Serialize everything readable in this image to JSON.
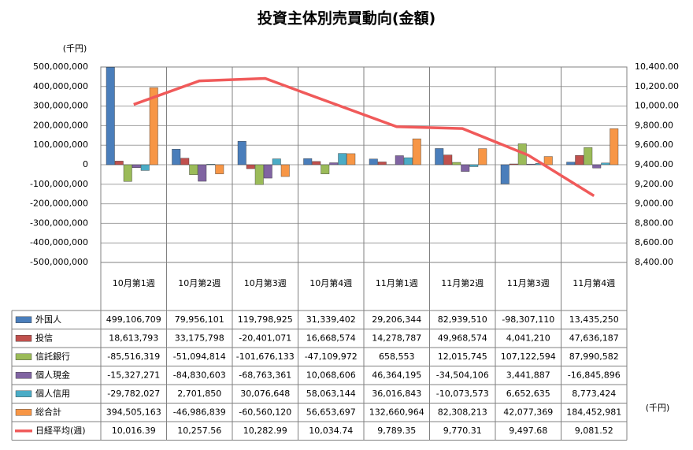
{
  "chart_data": {
    "type": "bar",
    "title": "投資主体別売買動向(金額)",
    "y_unit": "(千円)",
    "table_unit": "(千円)",
    "categories": [
      "10月第1週",
      "10月第2週",
      "10月第3週",
      "10月第4週",
      "11月第1週",
      "11月第2週",
      "11月第3週",
      "11月第4週"
    ],
    "ylim": [
      -500000000,
      500000000
    ],
    "yticks": [
      {
        "value": 500000000,
        "label": "500,000,000"
      },
      {
        "value": 400000000,
        "label": "400,000,000"
      },
      {
        "value": 300000000,
        "label": "300,000,000"
      },
      {
        "value": 200000000,
        "label": "200,000,000"
      },
      {
        "value": 100000000,
        "label": "100,000,000"
      },
      0,
      {
        "value": -100000000,
        "label": "-100,000,000"
      },
      {
        "value": -200000000,
        "label": "-200,000,000"
      },
      {
        "value": -300000000,
        "label": "-300,000,000"
      },
      {
        "value": -400000000,
        "label": "-400,000,000"
      },
      {
        "value": -500000000,
        "label": "-500,000,000"
      }
    ],
    "y2lim": [
      8400,
      10400
    ],
    "y2ticks": [
      {
        "value": 10400,
        "label": "10,400.00"
      },
      {
        "value": 10200,
        "label": "10,200.00"
      },
      {
        "value": 10000,
        "label": "10,000.00"
      },
      {
        "value": 9800,
        "label": "9,800.00"
      },
      {
        "value": 9600,
        "label": "9,600.00"
      },
      {
        "value": 9400,
        "label": "9,400.00"
      },
      {
        "value": 9200,
        "label": "9,200.00"
      },
      {
        "value": 9000,
        "label": "9,000.00"
      },
      {
        "value": 8800,
        "label": "8,800.00"
      },
      {
        "value": 8600,
        "label": "8,600.00"
      },
      {
        "value": 8400,
        "label": "8,400.00"
      }
    ],
    "grid": true,
    "negative_tick_color": "#e00000",
    "series": [
      {
        "name": "外国人",
        "color": "#4a7ebb",
        "values": [
          499106709,
          79956101,
          119798925,
          31339402,
          29206344,
          82939510,
          -98307110,
          13435250
        ],
        "value_labels": [
          "499,106,709",
          "79,956,101",
          "119,798,925",
          "31,339,402",
          "29,206,344",
          "82,939,510",
          "-98,307,110",
          "13,435,250"
        ]
      },
      {
        "name": "投信",
        "color": "#c0504d",
        "values": [
          18613793,
          33175798,
          -20401071,
          16668574,
          14278787,
          49968574,
          4041210,
          47636187
        ],
        "value_labels": [
          "18,613,793",
          "33,175,798",
          "-20,401,071",
          "16,668,574",
          "14,278,787",
          "49,968,574",
          "4,041,210",
          "47,636,187"
        ]
      },
      {
        "name": "信託銀行",
        "color": "#9bbb59",
        "values": [
          -85516319,
          -51094814,
          -101676133,
          -47109972,
          658553,
          12015745,
          107122594,
          87990582
        ],
        "value_labels": [
          "-85,516,319",
          "-51,094,814",
          "-101,676,133",
          "-47,109,972",
          "658,553",
          "12,015,745",
          "107,122,594",
          "87,990,582"
        ]
      },
      {
        "name": "個人現金",
        "color": "#8064a2",
        "values": [
          -15327271,
          -84830603,
          -68763361,
          10068606,
          46364195,
          -34504106,
          3441887,
          -16845896
        ],
        "value_labels": [
          "-15,327,271",
          "-84,830,603",
          "-68,763,361",
          "10,068,606",
          "46,364,195",
          "-34,504,106",
          "3,441,887",
          "-16,845,896"
        ]
      },
      {
        "name": "個人信用",
        "color": "#4bacc6",
        "values": [
          -29782027,
          2701850,
          30076648,
          58063144,
          36016843,
          -10073573,
          6652635,
          8773424
        ],
        "value_labels": [
          "-29,782,027",
          "2,701,850",
          "30,076,648",
          "58,063,144",
          "36,016,843",
          "-10,073,573",
          "6,652,635",
          "8,773,424"
        ]
      },
      {
        "name": "総合計",
        "color": "#f79646",
        "values": [
          394505163,
          -46986839,
          -60560120,
          56653697,
          132660964,
          82308213,
          42077369,
          184452981
        ],
        "value_labels": [
          "394,505,163",
          "-46,986,839",
          "-60,560,120",
          "56,653,697",
          "132,660,964",
          "82,308,213",
          "42,077,369",
          "184,452,981"
        ]
      },
      {
        "name": "日経平均(週)",
        "color": "#f05a5a",
        "type": "line",
        "axis": "y2",
        "values": [
          10016.39,
          10257.56,
          10282.99,
          10034.74,
          9789.35,
          9770.31,
          9497.68,
          9081.52
        ],
        "value_labels": [
          "10,016.39",
          "10,257.56",
          "10,282.99",
          "10,034.74",
          "9,789.35",
          "9,770.31",
          "9,497.68",
          "9,081.52"
        ]
      }
    ]
  }
}
